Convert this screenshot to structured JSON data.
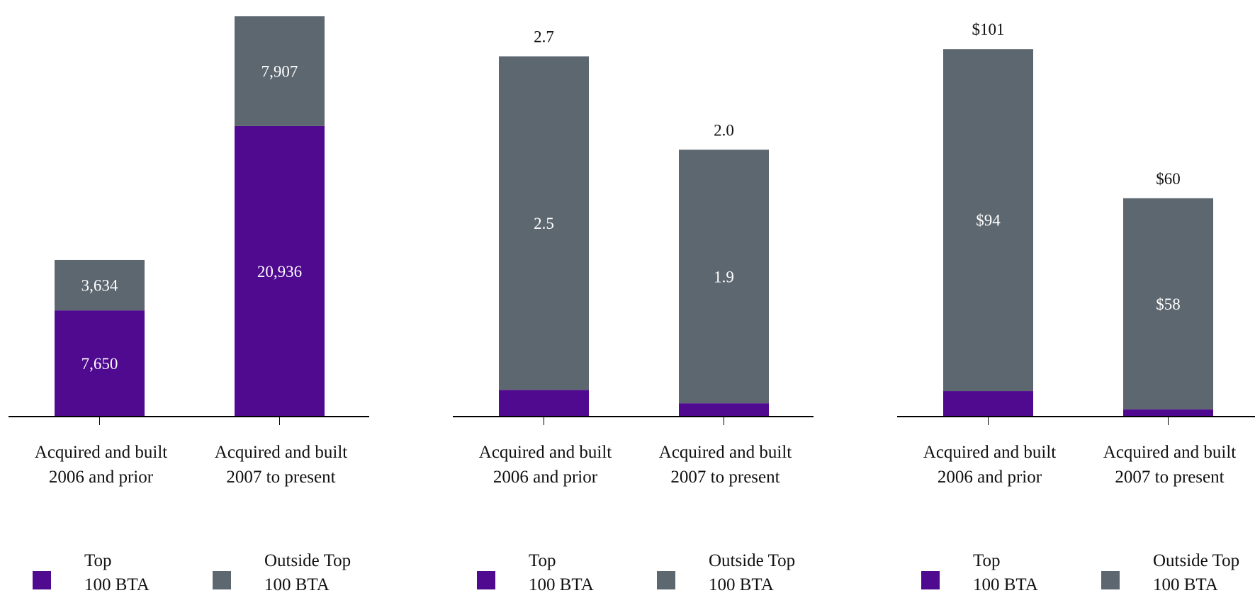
{
  "colors": {
    "top_100_bta": "#4f0a8f",
    "outside_top_100_bta": "#5d6770",
    "axis": "#000000"
  },
  "chart_data": [
    {
      "type": "bar",
      "stacked": true,
      "categories": [
        [
          "Acquired and built",
          "2006 and prior"
        ],
        [
          "Acquired and built",
          "2007 to present"
        ]
      ],
      "series": [
        {
          "name": "Top 100 BTA",
          "name_lines": [
            "Top",
            "100 BTA"
          ],
          "values": [
            7650,
            20936
          ],
          "labels": [
            "7,650",
            "20,936"
          ]
        },
        {
          "name": "Outside Top 100 BTA",
          "name_lines": [
            "Outside Top",
            "100 BTA"
          ],
          "values": [
            3634,
            7907
          ],
          "labels": [
            "3,634",
            "7,907"
          ]
        }
      ],
      "totals": [
        "",
        ""
      ],
      "ylim": [
        0,
        28843
      ],
      "grid": false,
      "legend": "bottom"
    },
    {
      "type": "bar",
      "stacked": true,
      "categories": [
        [
          "Acquired and built",
          "2006 and prior"
        ],
        [
          "Acquired and built",
          "2007 to present"
        ]
      ],
      "series": [
        {
          "name": "Top 100 BTA",
          "name_lines": [
            "Top",
            "100 BTA"
          ],
          "values": [
            0.2,
            0.1
          ],
          "labels": [
            "",
            ""
          ]
        },
        {
          "name": "Outside Top 100 BTA",
          "name_lines": [
            "Outside Top",
            "100 BTA"
          ],
          "values": [
            2.5,
            1.9
          ],
          "labels": [
            "2.5",
            "1.9"
          ]
        }
      ],
      "totals": [
        "2.7",
        "2.0"
      ],
      "ylim": [
        0,
        3.0
      ],
      "grid": false,
      "legend": "bottom"
    },
    {
      "type": "bar",
      "stacked": true,
      "categories": [
        [
          "Acquired and built",
          "2006 and prior"
        ],
        [
          "Acquired and built",
          "2007 to present"
        ]
      ],
      "series": [
        {
          "name": "Top 100 BTA",
          "name_lines": [
            "Top",
            "100 BTA"
          ],
          "values": [
            7,
            2
          ],
          "labels": [
            "",
            ""
          ]
        },
        {
          "name": "Outside Top 100 BTA",
          "name_lines": [
            "Outside Top",
            "100 BTA"
          ],
          "values": [
            94,
            58
          ],
          "labels": [
            "$94",
            "$58"
          ]
        }
      ],
      "totals": [
        "$101",
        "$60"
      ],
      "ylim": [
        0,
        110
      ],
      "grid": false,
      "legend": "bottom"
    }
  ]
}
